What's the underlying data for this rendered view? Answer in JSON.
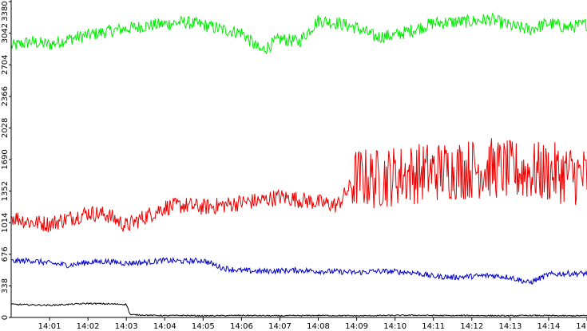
{
  "chart_data": {
    "type": "line",
    "title": "",
    "xlabel": "",
    "ylabel": "",
    "ylim": [
      0,
      3380
    ],
    "y_ticks": [
      "0",
      "338",
      "676",
      "1014",
      "1352",
      "1690",
      "2028",
      "2366",
      "2704",
      "3042",
      "3380"
    ],
    "y_tick_values": [
      0,
      338,
      676,
      1014,
      1352,
      1690,
      2028,
      2366,
      2704,
      3042,
      3380
    ],
    "x_ticks": [
      "14:01",
      "14:02",
      "14:03",
      "14:04",
      "14:05",
      "14:06",
      "14:07",
      "14:08",
      "14:09",
      "14:10",
      "14:11",
      "14:12",
      "14:13",
      "14:14",
      "14"
    ],
    "x_tick_minutes": [
      1,
      2,
      3,
      4,
      5,
      6,
      7,
      8,
      9,
      10,
      11,
      12,
      13,
      14,
      15
    ],
    "x_range_minutes": [
      0,
      15
    ],
    "grid": false,
    "background": "#ffffff",
    "series": [
      {
        "color": "#00ee00",
        "x_minutes": [
          0,
          0.5,
          1,
          1.5,
          2,
          2.5,
          3,
          3.5,
          4,
          4.5,
          5,
          5.5,
          6,
          6.5,
          7,
          7.5,
          8,
          8.5,
          9,
          9.5,
          10,
          10.5,
          11,
          11.5,
          12,
          12.5,
          13,
          13.5,
          14,
          14.5,
          15
        ],
        "values": [
          2900,
          2950,
          2920,
          2980,
          3020,
          3060,
          3090,
          3120,
          3140,
          3160,
          3130,
          3080,
          3050,
          2850,
          2980,
          2950,
          3180,
          3150,
          3100,
          3000,
          3020,
          3080,
          3150,
          3160,
          3170,
          3190,
          3120,
          3080,
          3150,
          3100,
          3140
        ]
      },
      {
        "color": "#ee0000",
        "x_minutes": [
          0,
          0.5,
          1,
          1.5,
          2,
          2.5,
          3,
          3.5,
          4,
          4.5,
          5,
          5.5,
          6,
          6.5,
          7,
          7.5,
          8,
          8.5,
          9,
          9.5,
          10,
          10.5,
          11,
          11.5,
          12,
          12.5,
          13,
          13.5,
          14,
          14.5,
          15
        ],
        "values": [
          1080,
          1020,
          1000,
          1060,
          1120,
          1100,
          980,
          1080,
          1180,
          1200,
          1180,
          1200,
          1230,
          1250,
          1290,
          1260,
          1230,
          1200,
          1500,
          1480,
          1520,
          1540,
          1560,
          1580,
          1590,
          1600,
          1570,
          1560,
          1550,
          1540,
          1500
        ]
      },
      {
        "color": "#0000cc",
        "x_minutes": [
          0,
          0.5,
          1,
          1.5,
          2,
          2.5,
          3,
          3.5,
          4,
          4.5,
          5,
          5.5,
          6,
          6.5,
          7,
          7.5,
          8,
          8.5,
          9,
          9.5,
          10,
          10.5,
          11,
          11.5,
          12,
          12.5,
          13,
          13.5,
          14,
          14.5,
          15
        ],
        "values": [
          600,
          610,
          580,
          560,
          590,
          600,
          580,
          590,
          610,
          600,
          610,
          530,
          500,
          495,
          500,
          505,
          495,
          490,
          480,
          495,
          490,
          480,
          440,
          430,
          440,
          450,
          430,
          370,
          460,
          470,
          470
        ]
      },
      {
        "color": "#000000",
        "x_minutes": [
          0,
          0.5,
          1,
          1.5,
          2,
          2.5,
          3,
          3.1,
          3.5,
          4,
          4.5,
          5,
          5.5,
          6,
          6.5,
          7,
          7.5,
          8,
          8.5,
          9,
          9.5,
          10,
          10.5,
          11,
          11.5,
          12,
          12.5,
          13,
          13.5,
          14,
          14.5,
          15
        ],
        "values": [
          140,
          135,
          130,
          140,
          150,
          145,
          140,
          30,
          25,
          20,
          22,
          18,
          20,
          22,
          20,
          18,
          20,
          22,
          20,
          18,
          20,
          22,
          24,
          22,
          20,
          22,
          20,
          18,
          22,
          20,
          18,
          20
        ]
      }
    ]
  }
}
